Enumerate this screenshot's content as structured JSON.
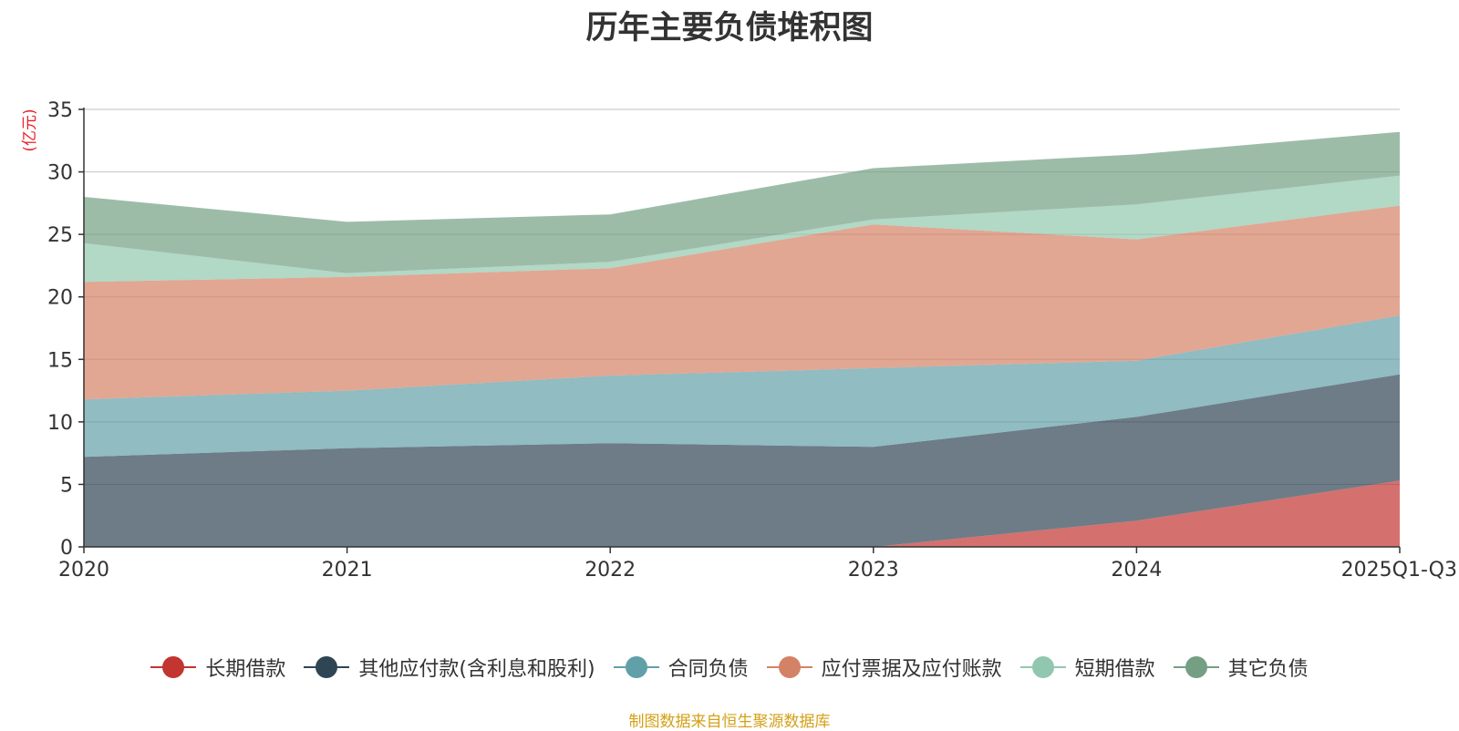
{
  "chart_data": {
    "type": "area",
    "stacked": true,
    "title": "历年主要负债堆积图",
    "ylabel": "(亿元)",
    "xlabel": "",
    "ylim": [
      0,
      35
    ],
    "yticks": [
      0,
      5,
      10,
      15,
      20,
      25,
      30,
      35
    ],
    "grid": true,
    "legend_position": "bottom",
    "categories": [
      "2020",
      "2021",
      "2022",
      "2023",
      "2024",
      "2025Q1-Q3"
    ],
    "series": [
      {
        "name": "长期借款",
        "color": "#c23531",
        "values": [
          0,
          0,
          0,
          0,
          2.1,
          5.3
        ]
      },
      {
        "name": "其他应付款(含利息和股利)",
        "color": "#2f4554",
        "values": [
          7.2,
          7.9,
          8.3,
          8.0,
          8.3,
          8.5
        ]
      },
      {
        "name": "合同负债",
        "color": "#61a0a8",
        "values": [
          4.6,
          4.6,
          5.4,
          6.3,
          4.5,
          4.7
        ]
      },
      {
        "name": "应付票据及应付账款",
        "color": "#d48265",
        "values": [
          9.4,
          9.1,
          8.6,
          11.5,
          9.7,
          8.8
        ]
      },
      {
        "name": "短期借款",
        "color": "#91c7ae",
        "values": [
          3.1,
          0.3,
          0.5,
          0.4,
          2.8,
          2.4
        ]
      },
      {
        "name": "其它负债",
        "color": "#749f83",
        "values": [
          3.7,
          4.1,
          3.8,
          4.1,
          4.0,
          3.5
        ]
      }
    ],
    "source": "制图数据来自恒生聚源数据库"
  }
}
